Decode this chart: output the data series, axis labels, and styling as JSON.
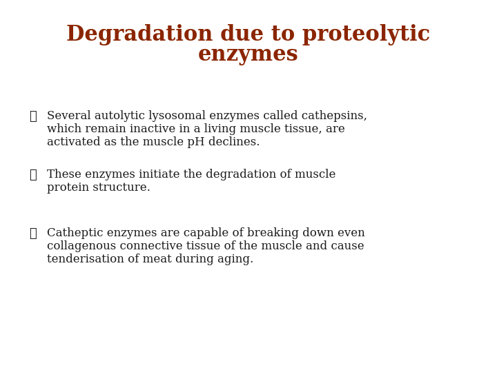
{
  "title_line1": "Degradation due to proteolytic",
  "title_line2": "enzymes",
  "title_color": "#8B2500",
  "title_fontsize": 22,
  "body_color": "#1A1A1A",
  "body_fontsize": 12,
  "background_color": "#FFFFFF",
  "bullet_char": "✓",
  "bullet_color": "#1A1A1A",
  "bullets": [
    {
      "lines": [
        "Several autolytic lysosomal enzymes called cathepsins,",
        "which remain inactive in a living muscle tissue, are",
        "activated as the muscle pH declines."
      ]
    },
    {
      "lines": [
        "These enzymes initiate the degradation of muscle",
        "protein structure."
      ]
    },
    {
      "lines": [
        "Catheptic enzymes are capable of breaking down even",
        "collagenous connective tissue of the muscle and cause",
        "tenderisation of meat during aging."
      ]
    }
  ]
}
